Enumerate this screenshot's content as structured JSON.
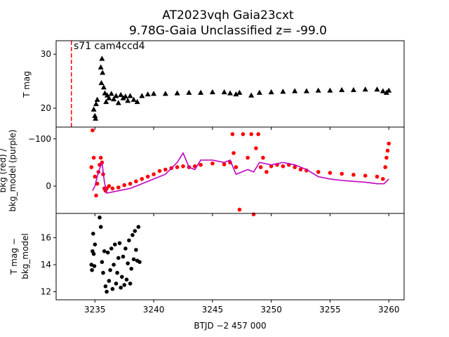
{
  "title_line1": "AT2023vqh  Gaia23cxt",
  "title_line2": "9.78G-Gaia Unclassified z= -99.0",
  "annotation": "s71 cam4ccd4",
  "xlabel": "BTJD −2 457 000",
  "x_ticks": [
    "3235",
    "3240",
    "3245",
    "3250",
    "3255",
    "3260"
  ],
  "colors": {
    "tmag": "#000000",
    "bkg": "#ff0000",
    "bkg_model": "#bf00bf",
    "marker_line": "#ff0000"
  },
  "chart_data": [
    {
      "type": "scatter",
      "ylabel": "T mag",
      "xlim": [
        3231.7,
        3261.3
      ],
      "ylim": [
        32.5,
        16.5
      ],
      "y_inverted": true,
      "yticks": [
        "20",
        "30"
      ],
      "vline_x": 3233.0,
      "series": [
        {
          "marker": "triangle",
          "x": [
            3234.9,
            3235.0,
            3235.05,
            3235.1,
            3235.2,
            3235.5,
            3235.55,
            3235.6,
            3235.65,
            3235.75,
            3235.85,
            3235.95,
            3236.05,
            3236.2,
            3236.4,
            3236.6,
            3236.8,
            3237.0,
            3237.2,
            3237.4,
            3237.6,
            3237.8,
            3238.0,
            3238.3,
            3238.6,
            3239.0,
            3239.5,
            3240.0,
            3241.0,
            3242.0,
            3243.0,
            3244.0,
            3245.0,
            3246.0,
            3246.5,
            3247.0,
            3247.3,
            3248.3,
            3249.0,
            3250.0,
            3251.0,
            3252.0,
            3253.0,
            3254.0,
            3255.0,
            3256.0,
            3257.0,
            3258.0,
            3259.0,
            3259.5,
            3259.8,
            3260.0
          ],
          "y": [
            19.8,
            18.6,
            18.1,
            20.8,
            21.6,
            27.6,
            24.7,
            29.2,
            26.6,
            23.9,
            22.8,
            21.2,
            22.4,
            21.9,
            22.7,
            21.7,
            22.3,
            21.0,
            22.5,
            21.9,
            22.2,
            21.4,
            22.3,
            21.6,
            21.2,
            22.3,
            22.6,
            22.7,
            22.7,
            22.8,
            22.9,
            22.9,
            23.0,
            23.0,
            22.8,
            22.6,
            22.9,
            22.4,
            22.9,
            23.0,
            23.1,
            23.2,
            23.2,
            23.3,
            23.3,
            23.4,
            23.4,
            23.5,
            23.5,
            23.2,
            22.9,
            23.3
          ]
        }
      ]
    },
    {
      "type": "scatter",
      "ylabel": "bkg (red) / bkg_model (purple)",
      "ylabel_line1": "bkg (red) /",
      "ylabel_line2": "bkg_model (purple)",
      "xlim": [
        3231.7,
        3261.3
      ],
      "ylim": [
        -125,
        58
      ],
      "yticks": [
        "−100",
        "0"
      ],
      "series": [
        {
          "name": "bkg",
          "marker": "circle",
          "x": [
            3234.7,
            3234.8,
            3234.9,
            3235.0,
            3235.1,
            3235.2,
            3235.3,
            3235.4,
            3235.5,
            3235.6,
            3235.7,
            3235.8,
            3235.9,
            3236.0,
            3236.2,
            3236.5,
            3237.0,
            3237.5,
            3238.0,
            3238.5,
            3239.0,
            3239.5,
            3240.0,
            3240.5,
            3241.0,
            3241.5,
            3242.0,
            3242.5,
            3243.0,
            3243.5,
            3244.0,
            3245.0,
            3246.0,
            3246.5,
            3246.7,
            3246.8,
            3247.0,
            3247.3,
            3247.6,
            3248.0,
            3248.3,
            3248.5,
            3248.7,
            3248.9,
            3249.1,
            3249.3,
            3249.6,
            3250.0,
            3250.5,
            3251.0,
            3251.5,
            3252.0,
            3252.5,
            3253.0,
            3254.0,
            3255.0,
            3256.0,
            3257.0,
            3258.0,
            3259.0,
            3259.5,
            3259.7,
            3259.8,
            3259.9,
            3260.0
          ],
          "y": [
            -40,
            -118,
            -60,
            -20,
            20,
            -5,
            -30,
            -45,
            -60,
            -50,
            -25,
            5,
            10,
            5,
            0,
            5,
            3,
            -2,
            -5,
            -10,
            -15,
            -20,
            -25,
            -32,
            -35,
            -38,
            -40,
            -42,
            -40,
            -42,
            -45,
            -48,
            -46,
            -50,
            -110,
            -70,
            -40,
            50,
            -110,
            -60,
            -110,
            60,
            -80,
            -110,
            -40,
            -60,
            -30,
            -42,
            -45,
            -42,
            -45,
            -40,
            -35,
            -33,
            -30,
            -28,
            -26,
            -24,
            -22,
            -20,
            -15,
            -40,
            -60,
            -75,
            -90
          ]
        },
        {
          "name": "bkg_model",
          "marker": "line",
          "x": [
            3234.8,
            3235.0,
            3235.3,
            3235.6,
            3235.8,
            3236.0,
            3237.0,
            3238.0,
            3239.0,
            3240.0,
            3241.0,
            3242.0,
            3242.5,
            3243.0,
            3243.5,
            3244.0,
            3245.0,
            3246.0,
            3246.5,
            3247.0,
            3248.0,
            3248.5,
            3249.0,
            3250.0,
            3251.0,
            3252.0,
            3253.0,
            3254.0,
            3255.0,
            3256.0,
            3257.0,
            3258.0,
            3259.0,
            3259.6,
            3260.0
          ],
          "y": [
            10,
            0,
            -30,
            -50,
            -10,
            15,
            10,
            5,
            -5,
            -15,
            -25,
            -50,
            -70,
            -40,
            -35,
            -55,
            -55,
            -50,
            -55,
            -25,
            -35,
            -30,
            -50,
            -45,
            -50,
            -45,
            -35,
            -20,
            -15,
            -12,
            -10,
            -8,
            -5,
            -5,
            -15
          ]
        }
      ]
    },
    {
      "type": "scatter",
      "ylabel": "T mag − bkg_model",
      "ylabel_line1": "T mag −",
      "ylabel_line2": "bkg_model",
      "xlim": [
        3231.7,
        3261.3
      ],
      "ylim": [
        17.8,
        11.4
      ],
      "y_inverted": true,
      "yticks": [
        "12",
        "14",
        "16"
      ],
      "series": [
        {
          "marker": "circle",
          "x": [
            3234.7,
            3234.75,
            3234.8,
            3234.85,
            3234.9,
            3234.95,
            3235.0,
            3235.4,
            3235.5,
            3235.6,
            3235.7,
            3235.8,
            3235.9,
            3236.0,
            3236.1,
            3236.2,
            3236.3,
            3236.4,
            3236.5,
            3236.6,
            3236.7,
            3236.8,
            3236.9,
            3237.0,
            3237.1,
            3237.2,
            3237.3,
            3237.4,
            3237.5,
            3237.6,
            3237.7,
            3237.8,
            3237.9,
            3238.0,
            3238.1,
            3238.2,
            3238.3,
            3238.4,
            3238.5,
            3238.6,
            3238.7,
            3238.8
          ],
          "y": [
            14.0,
            13.6,
            15.0,
            16.3,
            14.8,
            13.9,
            15.5,
            17.5,
            16.8,
            14.2,
            13.4,
            15.0,
            12.4,
            12.0,
            14.9,
            12.8,
            13.6,
            15.2,
            12.2,
            14.0,
            15.5,
            12.6,
            13.4,
            14.5,
            15.6,
            12.3,
            13.1,
            14.6,
            12.5,
            15.2,
            12.9,
            14.1,
            15.8,
            12.6,
            13.7,
            16.2,
            14.4,
            16.5,
            15.1,
            14.3,
            16.8,
            14.2
          ]
        }
      ]
    }
  ]
}
